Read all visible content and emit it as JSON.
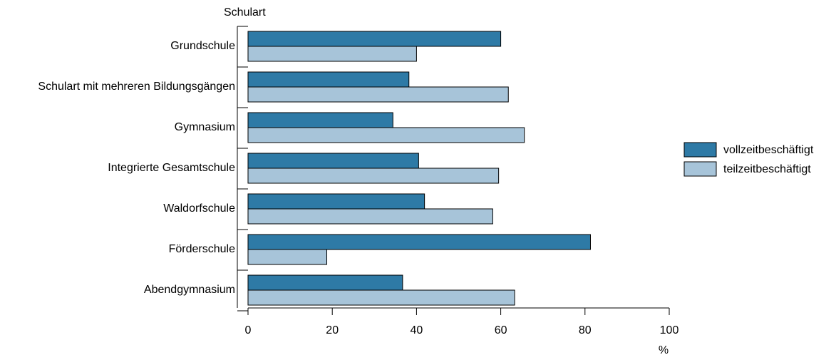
{
  "chart_data": {
    "type": "bar",
    "orientation": "horizontal",
    "ylabel": "Schulart",
    "xlabel": "%",
    "xlim": [
      0,
      100
    ],
    "xticks": [
      0,
      20,
      40,
      60,
      80,
      100
    ],
    "categories": [
      "Grundschule",
      "Schulart mit mehreren Bildungsgängen",
      "Gymnasium",
      "Integrierte Gesamtschule",
      "Waldorfschule",
      "Förderschule",
      "Abendgymnasium"
    ],
    "series": [
      {
        "name": "vollzeitbeschäftigt",
        "color": "#2e7aa6",
        "values": [
          60,
          38.2,
          34.4,
          40.5,
          41.9,
          81.3,
          36.7
        ]
      },
      {
        "name": "teilzeitbeschäftigt",
        "color": "#a7c4d9",
        "values": [
          40,
          61.8,
          65.6,
          59.5,
          58.1,
          18.7,
          63.3
        ]
      }
    ],
    "legend": "right",
    "grid": false
  }
}
